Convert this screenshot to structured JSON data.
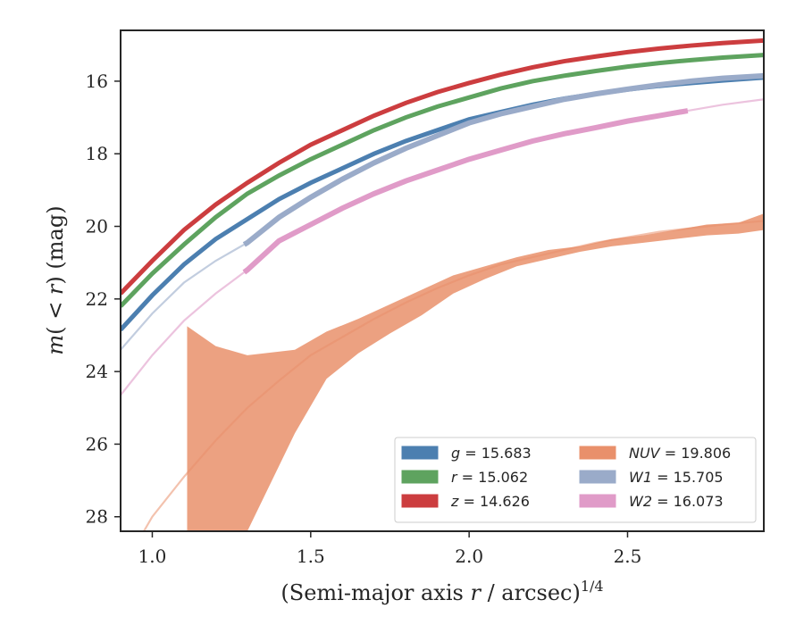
{
  "chart_data": {
    "type": "line",
    "xlabel_prefix": "(Semi-major axis ",
    "xlabel_var": "r",
    "xlabel_suffix": " / arcsec)",
    "xlabel_exp": "1/4",
    "ylabel_m": "m",
    "ylabel_paren": "(",
    "ylabel_lt": " < ",
    "ylabel_r": "r",
    "ylabel_close": ")",
    "ylabel_unit": " (mag)",
    "xlim": [
      0.9,
      2.93
    ],
    "ylim": [
      28.4,
      14.6
    ],
    "y_inverted": true,
    "xticks": [
      1.0,
      1.5,
      2.0,
      2.5
    ],
    "xtick_labels": [
      "1.0",
      "1.5",
      "2.0",
      "2.5"
    ],
    "yticks": [
      16,
      18,
      20,
      22,
      24,
      26,
      28
    ],
    "ytick_labels": [
      "16",
      "18",
      "20",
      "22",
      "24",
      "26",
      "28"
    ],
    "grid": false,
    "legend_position": "lower-right",
    "series": [
      {
        "name": "g",
        "label_var": "g",
        "label_value": " = 15.683",
        "color": "#4c7fb0",
        "x": [
          0.9,
          1.0,
          1.1,
          1.2,
          1.3,
          1.4,
          1.5,
          1.6,
          1.7,
          1.8,
          1.9,
          2.0,
          2.1,
          2.2,
          2.3,
          2.4,
          2.5,
          2.6,
          2.7,
          2.8,
          2.93
        ],
        "y": [
          22.85,
          21.9,
          21.05,
          20.35,
          19.8,
          19.25,
          18.8,
          18.4,
          18.0,
          17.65,
          17.35,
          17.05,
          16.85,
          16.65,
          16.48,
          16.35,
          16.23,
          16.13,
          16.05,
          15.98,
          15.9
        ]
      },
      {
        "name": "r",
        "label_var": "r",
        "label_value": " = 15.062",
        "color": "#5ea35f",
        "x": [
          0.9,
          1.0,
          1.1,
          1.2,
          1.3,
          1.4,
          1.5,
          1.6,
          1.7,
          1.8,
          1.9,
          2.0,
          2.1,
          2.2,
          2.3,
          2.4,
          2.5,
          2.6,
          2.7,
          2.8,
          2.93
        ],
        "y": [
          22.2,
          21.3,
          20.5,
          19.75,
          19.1,
          18.6,
          18.15,
          17.75,
          17.35,
          17.0,
          16.7,
          16.45,
          16.2,
          16.0,
          15.85,
          15.72,
          15.6,
          15.5,
          15.42,
          15.35,
          15.28
        ]
      },
      {
        "name": "z",
        "label_var": "z",
        "label_value": " = 14.626",
        "color": "#cc3d3f",
        "x": [
          0.9,
          1.0,
          1.1,
          1.2,
          1.3,
          1.4,
          1.5,
          1.6,
          1.7,
          1.8,
          1.9,
          2.0,
          2.1,
          2.2,
          2.3,
          2.4,
          2.5,
          2.6,
          2.7,
          2.8,
          2.93
        ],
        "y": [
          21.85,
          20.95,
          20.1,
          19.4,
          18.8,
          18.25,
          17.75,
          17.35,
          16.95,
          16.6,
          16.3,
          16.05,
          15.82,
          15.62,
          15.45,
          15.32,
          15.2,
          15.1,
          15.02,
          14.95,
          14.88
        ]
      },
      {
        "name": "NUV",
        "label_var": "NUV",
        "label_value": " = 19.806",
        "color": "#e9906b",
        "x": [
          0.9,
          1.0,
          1.1,
          1.2,
          1.3,
          1.4,
          1.5,
          1.6,
          1.7,
          1.8,
          1.9,
          2.0,
          2.1,
          2.2,
          2.3,
          2.4,
          2.5,
          2.6,
          2.7,
          2.8,
          2.93
        ],
        "y": [
          29.5,
          28.0,
          26.9,
          25.9,
          25.0,
          24.25,
          23.55,
          23.05,
          22.55,
          22.1,
          21.7,
          21.35,
          21.05,
          20.85,
          20.65,
          20.45,
          20.3,
          20.15,
          20.05,
          19.95,
          19.85
        ],
        "band_x": [
          1.11,
          1.11,
          1.2,
          1.3,
          1.45,
          1.55,
          1.65,
          1.75,
          1.85,
          1.95,
          2.05,
          2.15,
          2.25,
          2.35,
          2.45,
          2.55,
          2.65,
          2.75,
          2.85,
          2.93
        ],
        "band_lo": [
          21.95,
          22.75,
          23.3,
          23.55,
          23.4,
          22.9,
          22.55,
          22.15,
          21.75,
          21.35,
          21.1,
          20.85,
          20.65,
          20.55,
          20.35,
          20.25,
          20.1,
          19.95,
          19.9,
          19.65
        ],
        "band_hi": [
          28.4,
          28.4,
          28.4,
          28.4,
          25.7,
          24.2,
          23.5,
          22.95,
          22.45,
          21.85,
          21.45,
          21.1,
          20.9,
          20.7,
          20.55,
          20.45,
          20.35,
          20.25,
          20.2,
          20.1
        ]
      },
      {
        "name": "W1",
        "label_var": "W1",
        "label_value": " = 15.705",
        "color": "#9aabc9",
        "x": [
          0.9,
          1.0,
          1.1,
          1.2,
          1.3,
          1.4,
          1.5,
          1.6,
          1.7,
          1.8,
          1.9,
          2.0,
          2.1,
          2.2,
          2.3,
          2.4,
          2.5,
          2.6,
          2.7,
          2.8,
          2.93
        ],
        "y": [
          23.4,
          22.4,
          21.55,
          20.95,
          20.45,
          19.75,
          19.2,
          18.7,
          18.25,
          17.85,
          17.5,
          17.15,
          16.9,
          16.7,
          16.5,
          16.35,
          16.22,
          16.1,
          16.0,
          15.92,
          15.85
        ],
        "thick_from": 1.29,
        "thick_to": 2.93
      },
      {
        "name": "W2",
        "label_var": "W2",
        "label_value": " = 16.073",
        "color": "#e09bc8",
        "x": [
          0.9,
          1.0,
          1.1,
          1.2,
          1.3,
          1.4,
          1.5,
          1.6,
          1.7,
          1.8,
          1.9,
          2.0,
          2.1,
          2.2,
          2.3,
          2.4,
          2.5,
          2.6,
          2.7,
          2.8,
          2.93
        ],
        "y": [
          24.65,
          23.55,
          22.6,
          21.85,
          21.2,
          20.4,
          19.95,
          19.5,
          19.1,
          18.75,
          18.45,
          18.15,
          17.9,
          17.65,
          17.45,
          17.28,
          17.1,
          16.95,
          16.8,
          16.65,
          16.5
        ],
        "thick_from": 1.29,
        "thick_to": 2.69
      }
    ]
  }
}
